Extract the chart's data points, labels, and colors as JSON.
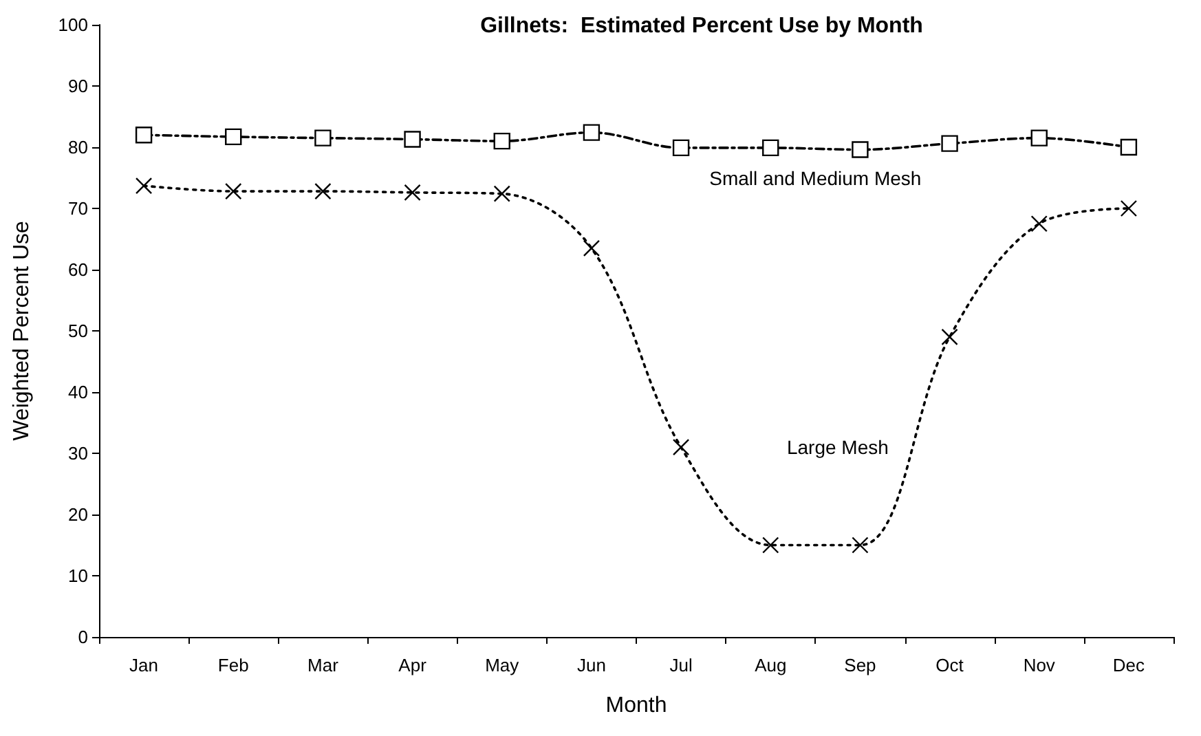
{
  "chart_data": {
    "type": "line",
    "title": "Gillnets:  Estimated Percent Use by Month",
    "xlabel": "Month",
    "ylabel": "Weighted Percent Use",
    "categories": [
      "Jan",
      "Feb",
      "Mar",
      "Apr",
      "May",
      "Jun",
      "Jul",
      "Aug",
      "Sep",
      "Oct",
      "Nov",
      "Dec"
    ],
    "series": [
      {
        "name": "Small and Medium Mesh",
        "color": "#000000",
        "marker": "square",
        "line_style": "dashed",
        "values": [
          82,
          81.7,
          81.5,
          81.3,
          81,
          82.4,
          79.9,
          79.9,
          79.6,
          80.6,
          81.5,
          80
        ]
      },
      {
        "name": "Large Mesh",
        "color": "#000000",
        "marker": "cross",
        "line_style": "dotted",
        "values": [
          73.7,
          72.8,
          72.8,
          72.6,
          72.4,
          63.5,
          31,
          15,
          15,
          49,
          67.5,
          70
        ]
      }
    ],
    "ylim": [
      0,
      100
    ],
    "yticks": [
      0,
      10,
      20,
      30,
      40,
      50,
      60,
      70,
      80,
      90,
      100
    ],
    "grid": false,
    "legend": false
  }
}
